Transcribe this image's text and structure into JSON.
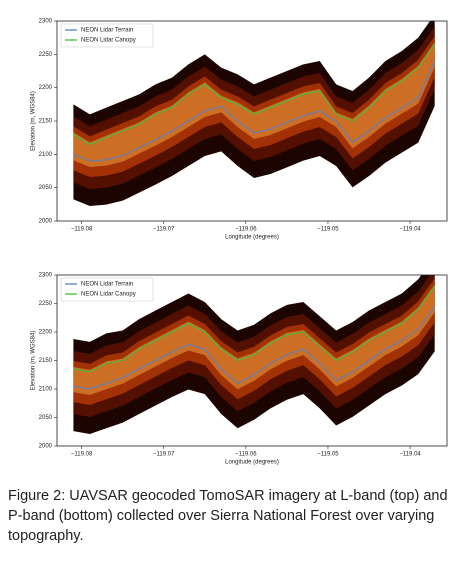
{
  "chart_data": [
    {
      "type": "line",
      "xlabel": "Longitude (degrees)",
      "ylabel": "Elevation (m, WGS84)",
      "x": [
        -119.081,
        -119.079,
        -119.077,
        -119.075,
        -119.073,
        -119.071,
        -119.069,
        -119.067,
        -119.065,
        -119.063,
        -119.061,
        -119.059,
        -119.057,
        -119.055,
        -119.053,
        -119.051,
        -119.049,
        -119.047,
        -119.045,
        -119.043,
        -119.041,
        -119.039,
        -119.037
      ],
      "xlim": [
        -119.083,
        -119.0355
      ],
      "xticks": [
        {
          "value": -119.08,
          "label": "−119.08"
        },
        {
          "value": -119.07,
          "label": "−119.07"
        },
        {
          "value": -119.06,
          "label": "−119.06"
        },
        {
          "value": -119.05,
          "label": "−119.05"
        },
        {
          "value": -119.04,
          "label": "−119.04"
        }
      ],
      "ylim": [
        2000,
        2300
      ],
      "yticks": [
        2000,
        2050,
        2100,
        2150,
        2200,
        2250,
        2300
      ],
      "legend": "upper left",
      "series": [
        {
          "name": "NEON Lidar Terrain",
          "color": "#5b7fc4",
          "values": [
            2100,
            2090,
            2092,
            2098,
            2110,
            2122,
            2135,
            2150,
            2165,
            2172,
            2150,
            2132,
            2138,
            2148,
            2158,
            2165,
            2150,
            2118,
            2135,
            2155,
            2170,
            2185,
            2240
          ]
        },
        {
          "name": "NEON Lidar Canopy",
          "color": "#3fbf3f",
          "values": [
            2130,
            2115,
            2125,
            2135,
            2145,
            2160,
            2170,
            2190,
            2205,
            2185,
            2175,
            2160,
            2170,
            2180,
            2190,
            2195,
            2160,
            2150,
            2170,
            2195,
            2210,
            2230,
            2265
          ]
        }
      ]
    },
    {
      "type": "line",
      "xlabel": "Longitude (degrees)",
      "ylabel": "Elevation (m, WGS84)",
      "x": [
        -119.081,
        -119.079,
        -119.077,
        -119.075,
        -119.073,
        -119.071,
        -119.069,
        -119.067,
        -119.065,
        -119.063,
        -119.061,
        -119.059,
        -119.057,
        -119.055,
        -119.053,
        -119.051,
        -119.049,
        -119.047,
        -119.045,
        -119.043,
        -119.041,
        -119.039,
        -119.037
      ],
      "xlim": [
        -119.083,
        -119.0355
      ],
      "xticks": [
        {
          "value": -119.08,
          "label": "−119.08"
        },
        {
          "value": -119.07,
          "label": "−119.07"
        },
        {
          "value": -119.06,
          "label": "−119.06"
        },
        {
          "value": -119.05,
          "label": "−119.05"
        },
        {
          "value": -119.04,
          "label": "−119.04"
        }
      ],
      "ylim": [
        2000,
        2300
      ],
      "yticks": [
        2000,
        2050,
        2100,
        2150,
        2200,
        2250,
        2300
      ],
      "legend": "upper left",
      "series": [
        {
          "name": "NEON Lidar Terrain",
          "color": "#5b7fc4",
          "values": [
            2105,
            2100,
            2110,
            2120,
            2135,
            2150,
            2165,
            2178,
            2170,
            2135,
            2110,
            2125,
            2145,
            2160,
            2170,
            2145,
            2115,
            2130,
            2150,
            2170,
            2185,
            2205,
            2245
          ]
        },
        {
          "name": "NEON Lidar Canopy",
          "color": "#3fbf3f",
          "values": [
            2135,
            2130,
            2145,
            2150,
            2170,
            2185,
            2200,
            2215,
            2200,
            2170,
            2150,
            2160,
            2180,
            2195,
            2200,
            2175,
            2150,
            2165,
            2185,
            2200,
            2215,
            2240,
            2280
          ]
        }
      ]
    }
  ],
  "caption": "Figure 2: UAVSAR geocoded TomoSAR imagery at L-band (top) and P-band (bottom) collected over Sierra National Forest over varying topography."
}
